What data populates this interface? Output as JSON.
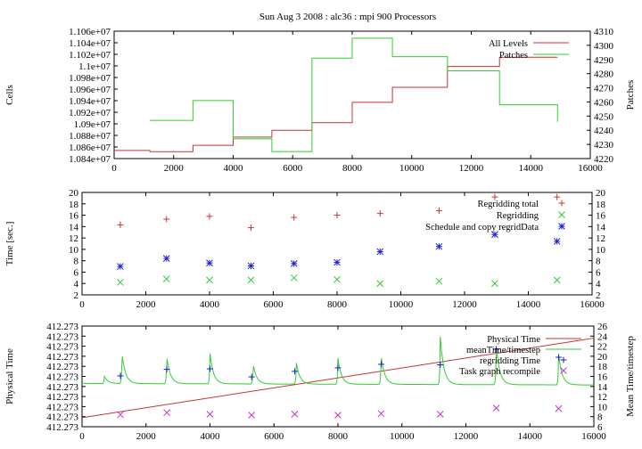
{
  "title": "Sun Aug 3 2008 : alc36 : mpi 900 Processors",
  "colors": {
    "red": "#c83232",
    "green": "#32cd32",
    "blue": "#1e1ed2",
    "magenta": "#c832c8",
    "frame": "#000000"
  },
  "chart_data": [
    {
      "type": "line",
      "title": "Sun Aug 3 2008 : alc36 : mpi 900 Processors",
      "xlabel": "",
      "ylabel": "Cells",
      "y2label": "Patches",
      "xlim": [
        0,
        16000
      ],
      "ylim": [
        10840000,
        11060000
      ],
      "y2lim": [
        4220,
        4310
      ],
      "xticks": [
        "0",
        "2000",
        "4000",
        "6000",
        "8000",
        "10000",
        "12000",
        "14000",
        "16000"
      ],
      "yticks": [
        "1.084e+07",
        "1.086e+07",
        "1.088e+07",
        "1.09e+07",
        "1.092e+07",
        "1.094e+07",
        "1.096e+07",
        "1.098e+07",
        "1.1e+07",
        "1.102e+07",
        "1.104e+07",
        "1.106e+07"
      ],
      "y2ticks": [
        "4220",
        "4230",
        "4240",
        "4250",
        "4260",
        "4270",
        "4280",
        "4290",
        "4300",
        "4310"
      ],
      "legend_position": "top-right",
      "series": [
        {
          "name": "All Levels",
          "axis": "left",
          "color": "#c83232",
          "x": [
            0,
            1200,
            1200,
            2650,
            2650,
            4000,
            4000,
            5300,
            5300,
            6650,
            6650,
            8000,
            8000,
            9350,
            9350,
            11200,
            11200,
            12950,
            12950,
            14900
          ],
          "y": [
            10854000,
            10854000,
            10852000,
            10852000,
            10863000,
            10863000,
            10877000,
            10877000,
            10889000,
            10889000,
            10902000,
            10902000,
            10937000,
            10937000,
            10963000,
            10963000,
            10999000,
            10999000,
            11015000,
            11015000
          ]
        },
        {
          "name": "Patches",
          "axis": "right",
          "color": "#32cd32",
          "x": [
            1200,
            2650,
            2650,
            4000,
            4000,
            5300,
            5300,
            6650,
            6650,
            8000,
            8000,
            9350,
            9350,
            11200,
            11200,
            12950,
            12950,
            14900,
            14900
          ],
          "y": [
            4247,
            4247,
            4261,
            4261,
            4234,
            4234,
            4225,
            4225,
            4291,
            4291,
            4305,
            4305,
            4292,
            4292,
            4282,
            4282,
            4258,
            4258,
            4246
          ]
        }
      ]
    },
    {
      "type": "scatter",
      "ylabel": "Time [sec.]",
      "xlim": [
        0,
        16000
      ],
      "ylim": [
        2,
        20
      ],
      "y2lim": [
        2,
        20
      ],
      "xticks": [
        "0",
        "2000",
        "4000",
        "6000",
        "8000",
        "10000",
        "12000",
        "14000",
        "16000"
      ],
      "yticks": [
        "2",
        "4",
        "6",
        "8",
        "10",
        "12",
        "14",
        "16",
        "18",
        "20"
      ],
      "y2ticks": [
        "2",
        "4",
        "6",
        "8",
        "10",
        "12",
        "14",
        "16",
        "18",
        "20"
      ],
      "legend_position": "top-right",
      "x": [
        1200,
        2650,
        4000,
        5300,
        6650,
        8000,
        9350,
        11200,
        12950,
        14900
      ],
      "series": [
        {
          "name": "Regridding total",
          "marker": "plus",
          "color": "#c83232",
          "values": [
            14.3,
            15.3,
            15.8,
            13.8,
            15.6,
            16.0,
            16.3,
            16.8,
            19.2,
            19.2
          ]
        },
        {
          "name": "Regridding",
          "marker": "x",
          "color": "#32cd32",
          "values": [
            4.2,
            4.8,
            4.6,
            4.6,
            5.0,
            4.7,
            4.0,
            4.4,
            4.0,
            4.6
          ]
        },
        {
          "name": "Schedule and copy regridData",
          "marker": "star",
          "color": "#1e1ed2",
          "values": [
            7.0,
            8.4,
            7.6,
            7.1,
            7.5,
            7.7,
            9.6,
            10.5,
            12.6,
            11.4
          ]
        }
      ]
    },
    {
      "type": "line",
      "ylabel": "Physical Time",
      "y2label": "Mean Time/timestep",
      "xlim": [
        0,
        16000
      ],
      "y2lim": [
        6,
        26
      ],
      "xticks": [
        "0",
        "2000",
        "4000",
        "6000",
        "8000",
        "10000",
        "12000",
        "14000",
        "16000"
      ],
      "yticks": [
        "412.273",
        "412.273",
        "412.273",
        "412.273",
        "412.273",
        "412.273",
        "412.273",
        "412.273",
        "412.273",
        "412.273",
        "412.273"
      ],
      "y2ticks": [
        "6",
        "8",
        "10",
        "12",
        "14",
        "16",
        "18",
        "20",
        "22",
        "24",
        "26"
      ],
      "legend_position": "top-right",
      "series": [
        {
          "name": "Physical Time",
          "axis": "left",
          "color": "#c83232",
          "note": "rises linearly",
          "x": [
            0,
            16000
          ],
          "y_fraction": [
            0.09,
            0.88
          ]
        },
        {
          "name": "meanTime/timestep",
          "axis": "right",
          "color": "#32cd32",
          "base": 14.6,
          "decay_to": 14.3,
          "spikes": [
            {
              "x": 700,
              "peak": 16.0
            },
            {
              "x": 1250,
              "peak": 20.5
            },
            {
              "x": 2650,
              "peak": 20.0
            },
            {
              "x": 4000,
              "peak": 20.6
            },
            {
              "x": 5350,
              "peak": 18.5
            },
            {
              "x": 6700,
              "peak": 18.8
            },
            {
              "x": 8000,
              "peak": 19.8
            },
            {
              "x": 9350,
              "peak": 20.3
            },
            {
              "x": 11200,
              "peak": 24.1
            },
            {
              "x": 12950,
              "peak": 22.3
            },
            {
              "x": 14900,
              "peak": 20.5
            }
          ]
        },
        {
          "name": "regridding Time",
          "axis": "right",
          "marker": "plus",
          "color": "#1e1ed2",
          "x": [
            1200,
            2650,
            4000,
            5300,
            6650,
            8000,
            9350,
            11200,
            12950,
            14900
          ],
          "values": [
            16.1,
            17.4,
            17.5,
            15.9,
            17.0,
            17.7,
            18.4,
            18.3,
            21.4,
            19.8
          ]
        },
        {
          "name": "Task graph recompile",
          "axis": "right",
          "marker": "x",
          "color": "#c832c8",
          "x": [
            1200,
            2650,
            4000,
            5300,
            6650,
            8000,
            9350,
            11200,
            12950,
            14900
          ],
          "values": [
            8.4,
            8.8,
            8.5,
            8.3,
            8.5,
            8.3,
            8.6,
            8.5,
            9.7,
            9.6
          ]
        }
      ]
    }
  ]
}
